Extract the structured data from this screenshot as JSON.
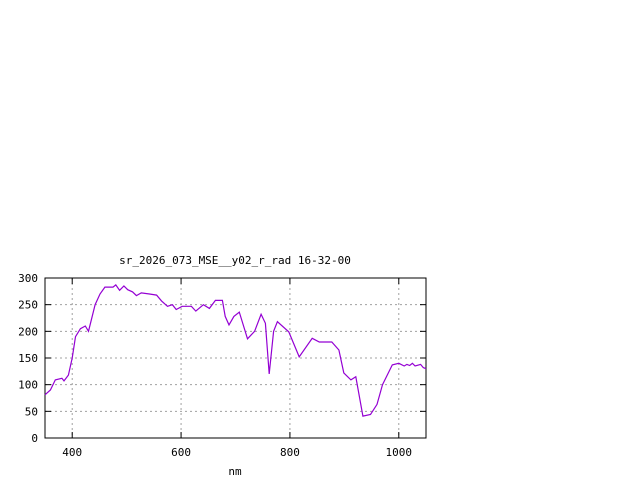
{
  "chart_data": {
    "type": "line",
    "title": "sr_2026_073_MSE__y02_r_rad 16-32-00",
    "xlabel": "nm",
    "ylabel": "",
    "xlim": [
      350,
      1050
    ],
    "ylim": [
      0,
      300
    ],
    "xticks": [
      400,
      600,
      800,
      1000
    ],
    "yticks": [
      0,
      50,
      100,
      150,
      200,
      250,
      300
    ],
    "grid": true,
    "colors": {
      "line": "#9400d3",
      "grid": "#a0a0a0",
      "axis": "#000000"
    },
    "series": [
      {
        "x": [
          350,
          360,
          369,
          381,
          385,
          393,
          400,
          406,
          415,
          424,
          430,
          442,
          451,
          460,
          475,
          480,
          487,
          495,
          502,
          511,
          518,
          527,
          542,
          555,
          564,
          575,
          584,
          591,
          602,
          619,
          627,
          641,
          652,
          663,
          676,
          681,
          688,
          697,
          707,
          722,
          735,
          747,
          755,
          762,
          770,
          777,
          798,
          817,
          841,
          854,
          877,
          890,
          899,
          912,
          921,
          934,
          948,
          960,
          970,
          988,
          1000,
          1010,
          1015,
          1020,
          1025,
          1030,
          1040,
          1045,
          1050
        ],
        "y": [
          81,
          90,
          109,
          112,
          107,
          118,
          150,
          190,
          205,
          210,
          200,
          250,
          270,
          283,
          283,
          287,
          277,
          285,
          278,
          274,
          267,
          272,
          270,
          268,
          257,
          247,
          250,
          241,
          247,
          247,
          238,
          250,
          243,
          258,
          258,
          228,
          212,
          228,
          236,
          186,
          200,
          232,
          215,
          120,
          200,
          218,
          199,
          152,
          187,
          180,
          180,
          165,
          122,
          109,
          115,
          41,
          44,
          63,
          100,
          137,
          140,
          135,
          138,
          136,
          140,
          135,
          138,
          132,
          130
        ]
      }
    ]
  }
}
